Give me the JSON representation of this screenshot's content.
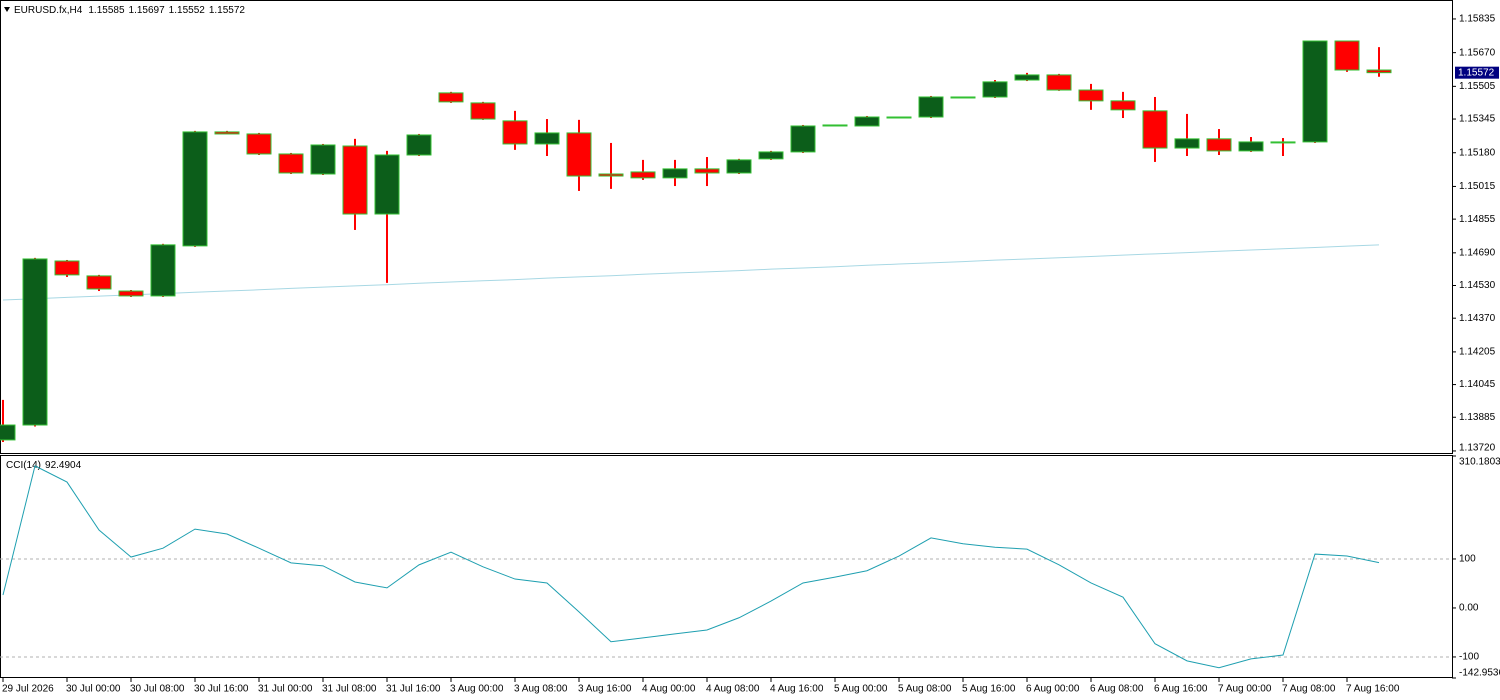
{
  "chart_data": [
    {
      "type": "candlestick",
      "title": "EURUSD.fx,H4",
      "categories": [
        "29 Jul 2026",
        null,
        "30 Jul 00:00",
        null,
        "30 Jul 08:00",
        null,
        "30 Jul 16:00",
        null,
        "31 Jul 00:00",
        null,
        "31 Jul 08:00",
        null,
        "31 Jul 16:00",
        null,
        "3 Aug 00:00",
        null,
        "3 Aug 08:00",
        null,
        "3 Aug 16:00",
        null,
        "4 Aug 00:00",
        null,
        "4 Aug 08:00",
        null,
        "4 Aug 16:00",
        null,
        "5 Aug 00:00",
        null,
        "5 Aug 08:00",
        null,
        "5 Aug 16:00",
        null,
        "6 Aug 00:00",
        null,
        "6 Aug 08:00",
        null,
        "6 Aug 16:00",
        null,
        "7 Aug 00:00",
        null,
        "7 Aug 08:00",
        null,
        "7 Aug 16:00",
        null
      ],
      "open": [
        1.13774,
        1.13847,
        1.1465,
        1.14577,
        1.14503,
        1.14479,
        1.14724,
        1.15282,
        1.15272,
        1.15174,
        1.15076,
        1.15213,
        1.1488,
        1.15169,
        1.15473,
        1.15424,
        1.15336,
        1.15223,
        1.15277,
        1.15076,
        1.15086,
        1.15057,
        1.15101,
        1.15081,
        1.1515,
        1.15184,
        1.15311,
        1.15311,
        1.15355,
        1.15355,
        1.15453,
        1.15453,
        1.15536,
        1.15561,
        1.15487,
        1.15434,
        1.15385,
        1.15203,
        1.15248,
        1.15189,
        1.15233,
        1.15233,
        1.15727,
        1.15585
      ],
      "high": [
        1.1397,
        1.14665,
        1.14655,
        1.14582,
        1.14508,
        1.14734,
        1.15287,
        1.15287,
        1.15277,
        1.15179,
        1.15223,
        1.15248,
        1.15189,
        1.15272,
        1.15478,
        1.15429,
        1.15385,
        1.15345,
        1.15341,
        1.15228,
        1.15145,
        1.15145,
        1.15159,
        1.1515,
        1.15189,
        1.15316,
        1.15316,
        1.1536,
        1.15355,
        1.15458,
        1.15453,
        1.15536,
        1.15571,
        1.15566,
        1.15517,
        1.15478,
        1.15453,
        1.1537,
        1.15296,
        1.15257,
        1.15252,
        1.15727,
        1.15727,
        1.15697
      ],
      "low": [
        1.13764,
        1.1384,
        1.14572,
        1.14503,
        1.14474,
        1.14474,
        1.14719,
        1.15272,
        1.15169,
        1.15076,
        1.15071,
        1.14802,
        1.14543,
        1.15164,
        1.15424,
        1.15341,
        1.15194,
        1.15164,
        1.14993,
        1.15003,
        1.15047,
        1.15017,
        1.15017,
        1.15076,
        1.15145,
        1.15179,
        1.15311,
        1.15311,
        1.15355,
        1.1535,
        1.15453,
        1.15448,
        1.15531,
        1.15483,
        1.1539,
        1.1535,
        1.15135,
        1.15164,
        1.15169,
        1.15184,
        1.15164,
        1.15228,
        1.15576,
        1.15552
      ],
      "close": [
        1.13847,
        1.1466,
        1.14582,
        1.14513,
        1.14479,
        1.14729,
        1.15282,
        1.15272,
        1.15174,
        1.15081,
        1.15218,
        1.1488,
        1.15169,
        1.15267,
        1.15429,
        1.15345,
        1.15223,
        1.15277,
        1.15066,
        1.15066,
        1.15057,
        1.15101,
        1.15081,
        1.15145,
        1.15184,
        1.15311,
        1.15316,
        1.15355,
        1.15355,
        1.15453,
        1.15453,
        1.15527,
        1.15561,
        1.15487,
        1.15434,
        1.1539,
        1.15203,
        1.15248,
        1.15189,
        1.15233,
        1.15233,
        1.15727,
        1.15585,
        1.15572
      ],
      "overlay": {
        "color": "#a8d8e4",
        "values": [
          1.14459,
          1.14465,
          1.14472,
          1.14478,
          1.14484,
          1.1449,
          1.14497,
          1.14503,
          1.14509,
          1.14516,
          1.14522,
          1.14528,
          1.14534,
          1.14541,
          1.14547,
          1.14553,
          1.14559,
          1.14566,
          1.14572,
          1.14578,
          1.14585,
          1.14591,
          1.14597,
          1.14603,
          1.1461,
          1.14616,
          1.14622,
          1.14629,
          1.14635,
          1.14641,
          1.14647,
          1.14654,
          1.1466,
          1.14666,
          1.14672,
          1.14679,
          1.14685,
          1.14691,
          1.14698,
          1.14704,
          1.1471,
          1.14716,
          1.14723,
          1.14729
        ]
      },
      "up_color": "#0c5e1a",
      "down_color": "#ff0000",
      "border_color": "#33c033",
      "wick_color": "#ff0000",
      "ylim": [
        1.1371,
        1.15918
      ],
      "yticks": [
        1.15835,
        {
          "value": 1.1567,
          "label": "1.15670"
        },
        1.15505,
        1.15345,
        {
          "value": 1.1518,
          "label": "1.15180"
        },
        1.15015,
        1.14855,
        {
          "value": 1.1469,
          "label": "1.14690"
        },
        {
          "value": 1.1453,
          "label": "1.14530"
        },
        {
          "value": 1.1437,
          "label": "1.14370"
        },
        1.14205,
        1.14045,
        1.13885,
        {
          "value": 1.1372,
          "label": "1.13720"
        }
      ]
    },
    {
      "type": "line",
      "title": "CCI(14)",
      "color": "#1e9fb0",
      "values": [
        26.5,
        290,
        257,
        159,
        104,
        122,
        161,
        151,
        122,
        92,
        86,
        53,
        41,
        88,
        114,
        84,
        59,
        51,
        -8,
        -69,
        -61,
        -53,
        -45,
        -20,
        14,
        51,
        63,
        76,
        106,
        143,
        131,
        124,
        120,
        88,
        51,
        22,
        -73,
        -108,
        -122,
        -104,
        -96,
        110,
        106,
        92.4904
      ],
      "levels": [
        100,
        -100
      ],
      "ylim": [
        -142.9536,
        310.1803
      ],
      "yticks": [
        310.1803,
        100,
        {
          "value": 0,
          "label": "0.00"
        },
        -100,
        -142.9536
      ]
    }
  ]
}
